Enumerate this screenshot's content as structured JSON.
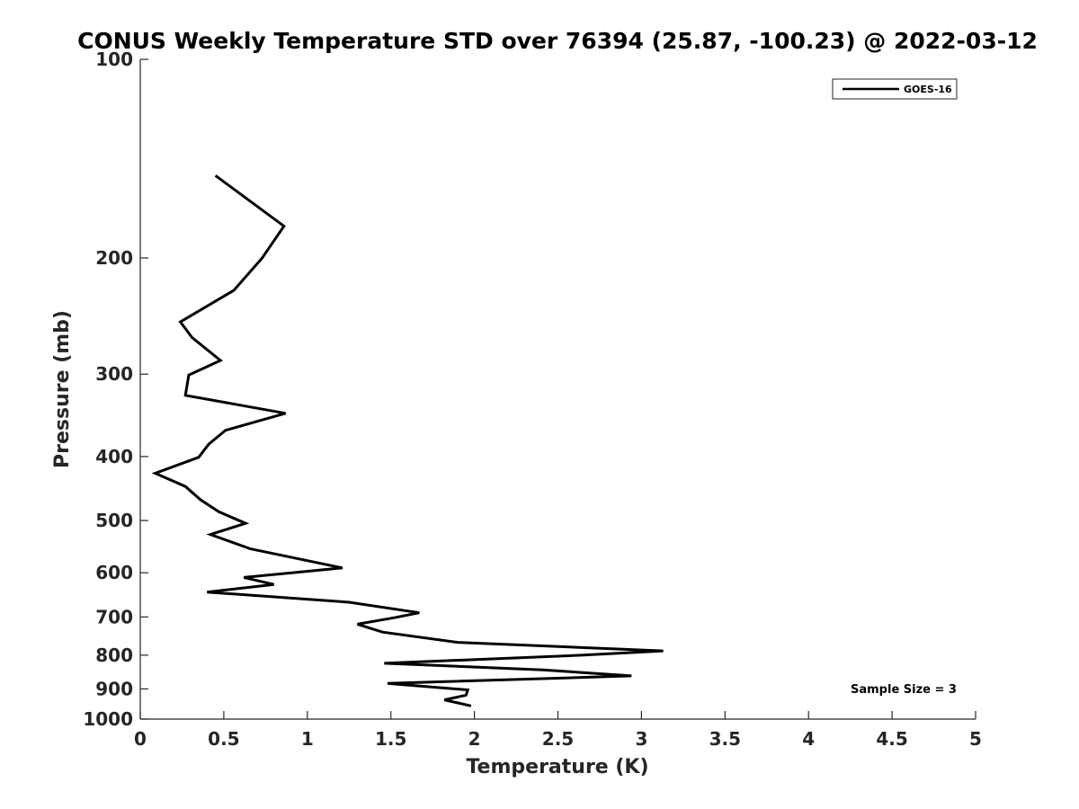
{
  "chart_data": {
    "type": "line",
    "title": "CONUS Weekly Temperature STD over 76394 (25.87, -100.23) @ 2022-03-12",
    "xlabel": "Temperature (K)",
    "ylabel": "Pressure (mb)",
    "xlim": [
      0,
      5
    ],
    "ylim": [
      100,
      1000
    ],
    "y_scale": "log",
    "y_reversed": true,
    "xticks": [
      0,
      0.5,
      1,
      1.5,
      2,
      2.5,
      3,
      3.5,
      4,
      4.5,
      5
    ],
    "xtick_labels": [
      "0",
      "0.5",
      "1",
      "1.5",
      "2",
      "2.5",
      "3",
      "3.5",
      "4",
      "4.5",
      "5"
    ],
    "yticks": [
      100,
      200,
      300,
      400,
      500,
      600,
      700,
      800,
      900,
      1000
    ],
    "ytick_labels": [
      "100",
      "200",
      "300",
      "400",
      "500",
      "600",
      "700",
      "800",
      "900",
      "1000"
    ],
    "grid": false,
    "legend_position": "top-right",
    "annotation": "Sample Size = 3",
    "series": [
      {
        "name": "GOES-16",
        "color": "#000000",
        "points": [
          {
            "x": 0.45,
            "p": 150
          },
          {
            "x": 0.86,
            "p": 179
          },
          {
            "x": 0.73,
            "p": 200
          },
          {
            "x": 0.56,
            "p": 224
          },
          {
            "x": 0.24,
            "p": 250
          },
          {
            "x": 0.31,
            "p": 264
          },
          {
            "x": 0.48,
            "p": 286
          },
          {
            "x": 0.29,
            "p": 301
          },
          {
            "x": 0.27,
            "p": 323
          },
          {
            "x": 0.87,
            "p": 344
          },
          {
            "x": 0.51,
            "p": 365
          },
          {
            "x": 0.41,
            "p": 383
          },
          {
            "x": 0.35,
            "p": 401
          },
          {
            "x": 0.09,
            "p": 424
          },
          {
            "x": 0.27,
            "p": 444
          },
          {
            "x": 0.36,
            "p": 465
          },
          {
            "x": 0.47,
            "p": 485
          },
          {
            "x": 0.63,
            "p": 505
          },
          {
            "x": 0.42,
            "p": 525
          },
          {
            "x": 0.66,
            "p": 552
          },
          {
            "x": 1.21,
            "p": 590
          },
          {
            "x": 0.62,
            "p": 610
          },
          {
            "x": 0.8,
            "p": 625
          },
          {
            "x": 0.4,
            "p": 642
          },
          {
            "x": 1.25,
            "p": 665
          },
          {
            "x": 1.67,
            "p": 690
          },
          {
            "x": 1.52,
            "p": 702
          },
          {
            "x": 1.3,
            "p": 718
          },
          {
            "x": 1.45,
            "p": 738
          },
          {
            "x": 1.9,
            "p": 765
          },
          {
            "x": 3.13,
            "p": 788
          },
          {
            "x": 2.64,
            "p": 800
          },
          {
            "x": 1.46,
            "p": 823
          },
          {
            "x": 2.41,
            "p": 842
          },
          {
            "x": 2.94,
            "p": 860
          },
          {
            "x": 1.48,
            "p": 883
          },
          {
            "x": 1.96,
            "p": 903
          },
          {
            "x": 1.95,
            "p": 920
          },
          {
            "x": 1.82,
            "p": 935
          },
          {
            "x": 1.98,
            "p": 955
          }
        ]
      }
    ]
  }
}
